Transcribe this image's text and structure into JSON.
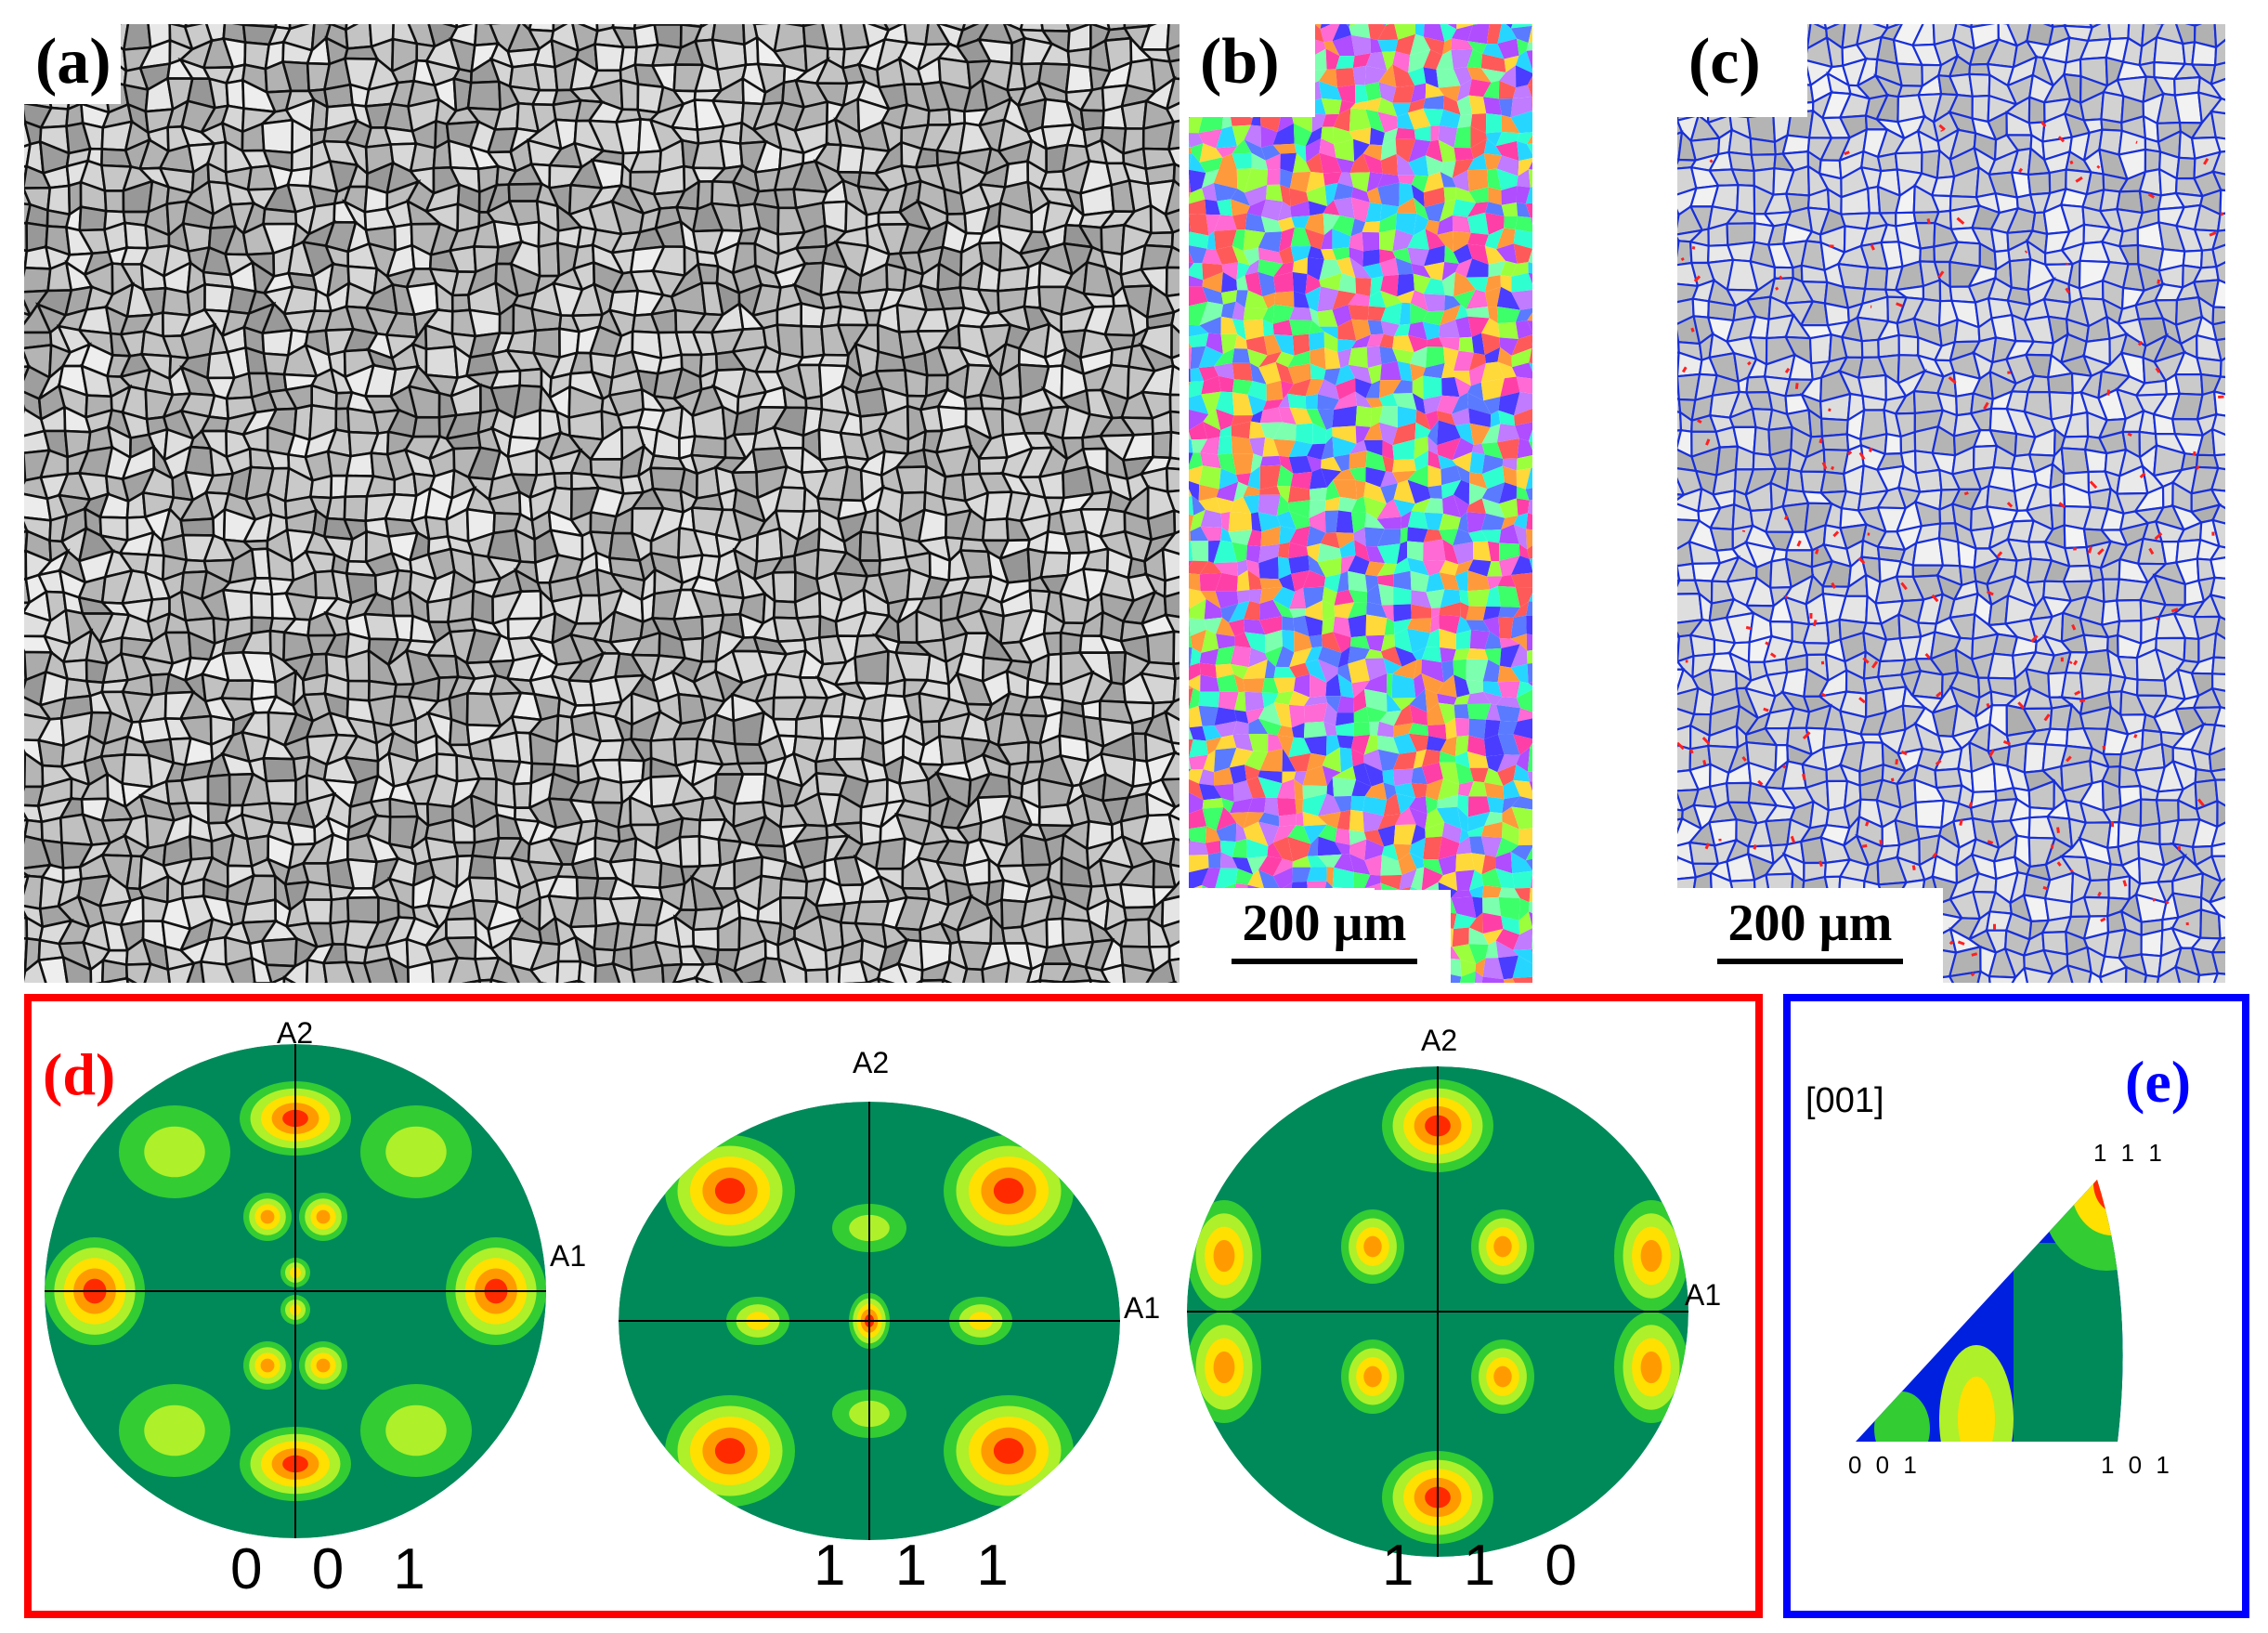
{
  "panels": {
    "a": {
      "label": "(a)"
    },
    "b": {
      "label": "(b)",
      "scale_bar": "200 µm"
    },
    "c": {
      "label": "(c)",
      "scale_bar": "200 µm"
    }
  },
  "pole_figures": {
    "label": "(d)",
    "frame_color": "#ff0000",
    "axis_x": "A1",
    "axis_y": "A2",
    "figures": [
      {
        "name": "0 0 1"
      },
      {
        "name": "1 1 1"
      },
      {
        "name": "1 1 0"
      }
    ],
    "colors": [
      "#0020e0",
      "#008a5a",
      "#33cc33",
      "#aef02a",
      "#ffe000",
      "#ff9b00",
      "#ff2a00"
    ]
  },
  "inverse_pole_figure": {
    "label": "(e)",
    "frame_color": "#0000ff",
    "direction": "[001]",
    "corner_111": "1 1 1",
    "corner_001": "0 0 1",
    "corner_101": "1 0 1"
  }
}
